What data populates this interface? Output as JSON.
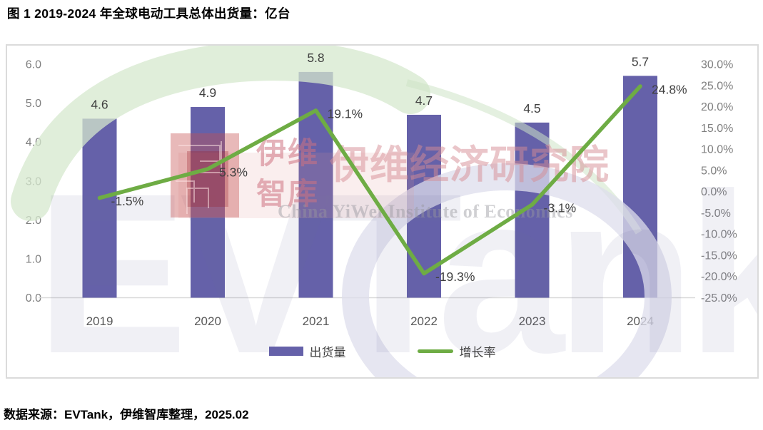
{
  "page": {
    "title": "图 1 2019-2024 年全球电动工具总体出货量：亿台"
  },
  "footer": {
    "label": "数据来源：",
    "text": "EVTank，伊维智库整理，2025.02"
  },
  "legend": [
    {
      "label": "出货量",
      "type": "bar",
      "color": "#6561a9"
    },
    {
      "label": "增长率",
      "type": "line",
      "color": "#6eac44"
    }
  ],
  "watermark": {
    "brand_letters": "EVTank",
    "cn_stack_line1": "伊维",
    "cn_stack_line2": "智库",
    "cn_title": "伊维经济研究院",
    "en_subtitle": "China YiWei Institute of Economics"
  },
  "chart_data": {
    "type": "bar",
    "title": "图 1 2019-2024 年全球电动工具总体出货量：亿台",
    "categories": [
      "2019",
      "2020",
      "2021",
      "2022",
      "2023",
      "2024"
    ],
    "series": [
      {
        "name": "出货量",
        "type": "bar",
        "axis": "left",
        "color": "#6561a9",
        "values": [
          4.6,
          4.9,
          5.8,
          4.7,
          4.5,
          5.7
        ],
        "labels": [
          "4.6",
          "4.9",
          "5.8",
          "4.7",
          "4.5",
          "5.7"
        ]
      },
      {
        "name": "增长率",
        "type": "line",
        "axis": "right",
        "color": "#6eac44",
        "values": [
          -1.5,
          5.3,
          19.1,
          -19.3,
          -3.1,
          24.8
        ],
        "labels": [
          "-1.5%",
          "5.3%",
          "19.1%",
          "-19.3%",
          "-3.1%",
          "24.8%"
        ]
      }
    ],
    "left_axis": {
      "min": 0,
      "max": 6,
      "step": 1,
      "decimals": 1,
      "suffix": ""
    },
    "right_axis": {
      "min": -25,
      "max": 30,
      "step": 5,
      "decimals": 1,
      "suffix": "%"
    },
    "grid": false,
    "legend_position": "bottom"
  }
}
